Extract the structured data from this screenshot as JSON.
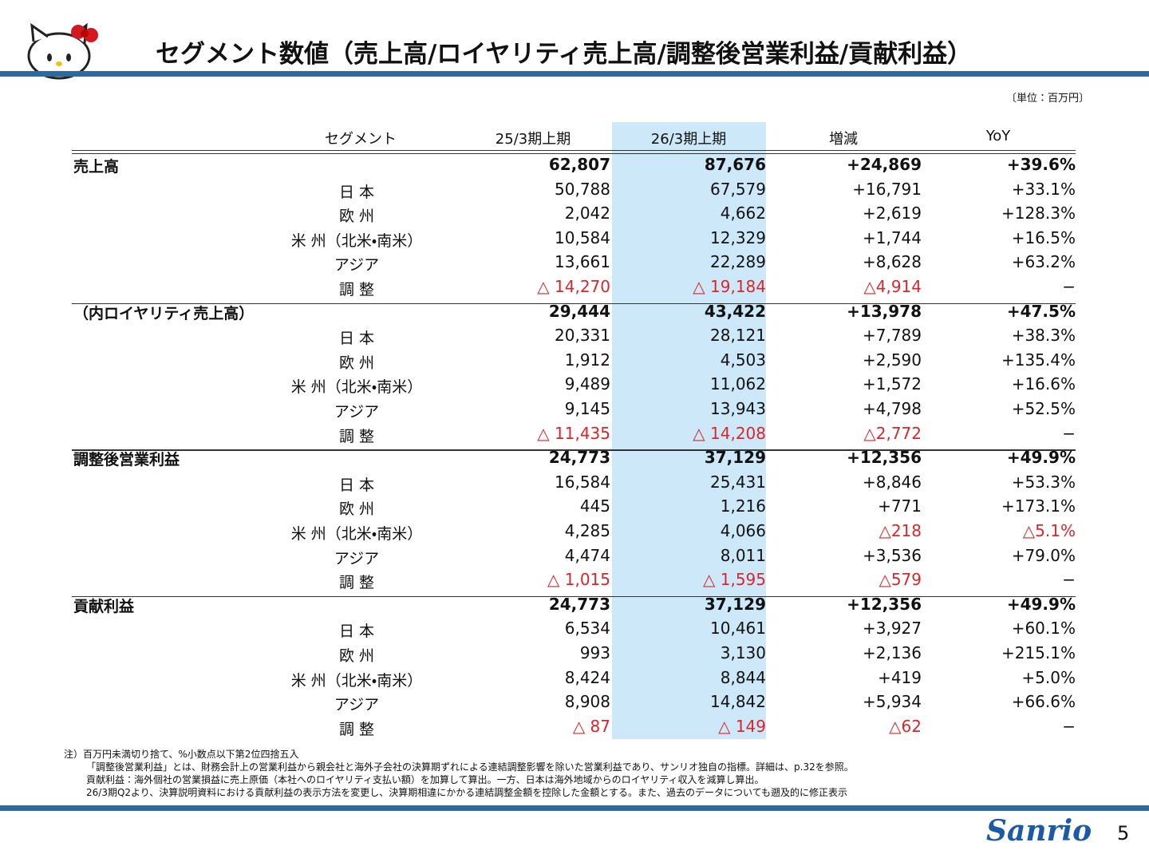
{
  "header": {
    "title": "セグメント数値（売上高/ロイヤリティ売上高/調整後営業利益/貢献利益）",
    "unit": "〔単位：百万円〕"
  },
  "table": {
    "columns": [
      "セグメント",
      "25/3期上期",
      "26/3期上期",
      "増減",
      "YoY"
    ],
    "sections": [
      {
        "label": "売上高",
        "total": [
          "62,807",
          "87,676",
          "+24,869",
          "+39.6%"
        ],
        "rows": [
          [
            "日 本",
            "50,788",
            "67,579",
            "+16,791",
            "+33.1%"
          ],
          [
            "欧 州",
            "2,042",
            "4,662",
            "+2,619",
            "+128.3%"
          ],
          [
            "米 州（北米・南米）",
            "10,584",
            "12,329",
            "+1,744",
            "+16.5%"
          ],
          [
            "アジア",
            "13,661",
            "22,289",
            "+8,628",
            "+63.2%"
          ],
          [
            "調 整",
            "△ 14,270",
            "△ 19,184",
            "△4,914",
            "−"
          ]
        ]
      },
      {
        "label": "（内ロイヤリティ売上高）",
        "total": [
          "29,444",
          "43,422",
          "+13,978",
          "+47.5%"
        ],
        "rows": [
          [
            "日 本",
            "20,331",
            "28,121",
            "+7,789",
            "+38.3%"
          ],
          [
            "欧 州",
            "1,912",
            "4,503",
            "+2,590",
            "+135.4%"
          ],
          [
            "米 州（北米・南米）",
            "9,489",
            "11,062",
            "+1,572",
            "+16.6%"
          ],
          [
            "アジア",
            "9,145",
            "13,943",
            "+4,798",
            "+52.5%"
          ],
          [
            "調 整",
            "△ 11,435",
            "△ 14,208",
            "△2,772",
            "−"
          ]
        ]
      },
      {
        "label": "調整後営業利益",
        "total": [
          "24,773",
          "37,129",
          "+12,356",
          "+49.9%"
        ],
        "rows": [
          [
            "日 本",
            "16,584",
            "25,431",
            "+8,846",
            "+53.3%"
          ],
          [
            "欧 州",
            "445",
            "1,216",
            "+771",
            "+173.1%"
          ],
          [
            "米 州（北米・南米）",
            "4,285",
            "4,066",
            "△218",
            "△5.1%"
          ],
          [
            "アジア",
            "4,474",
            "8,011",
            "+3,536",
            "+79.0%"
          ],
          [
            "調 整",
            "△ 1,015",
            "△ 1,595",
            "△579",
            "−"
          ]
        ]
      },
      {
        "label": "貢献利益",
        "total": [
          "24,773",
          "37,129",
          "+12,356",
          "+49.9%"
        ],
        "rows": [
          [
            "日 本",
            "6,534",
            "10,461",
            "+3,927",
            "+60.1%"
          ],
          [
            "欧 州",
            "993",
            "3,130",
            "+2,136",
            "+215.1%"
          ],
          [
            "米 州（北米・南米）",
            "8,424",
            "8,844",
            "+419",
            "+5.0%"
          ],
          [
            "アジア",
            "8,908",
            "14,842",
            "+5,934",
            "+66.6%"
          ],
          [
            "調 整",
            "△ 87",
            "△ 149",
            "△62",
            "−"
          ]
        ]
      }
    ]
  },
  "notes": [
    "注）百万円未満切り捨て、%小数点以下第2位四捨五入",
    "「調整後営業利益」とは、財務会計上の営業利益から親会社と海外子会社の決算期ずれによる連結調整影響を除いた営業利益であり、サンリオ独自の指標。詳細は、p.32を参照。",
    "貢献利益：海外個社の営業損益に売上原価（本社へのロイヤリティ支払い額）を加算して算出。一方、日本は海外地域からのロイヤリティ収入を減算し算出。",
    "26/3期Q2より、決算説明資料における貢献利益の表示方法を変更し、決算期相違にかかる連結調整金額を控除した金額とする。また、過去のデータについても遡及的に修正表示"
  ],
  "logo": "Sanrio",
  "page_number": "5"
}
